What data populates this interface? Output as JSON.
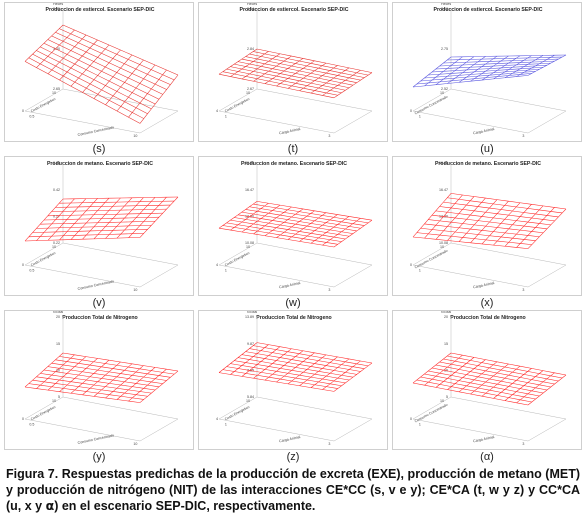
{
  "chart_data": [
    {
      "id": "s",
      "type": "surface",
      "label": "(s)",
      "title": "Produccion de estiercol. Escenario SEP-DIC",
      "zlabel": "Heces",
      "zticks": [
        "3.25",
        "3.00",
        "2.65"
      ],
      "xlabel": "Costo Energetico",
      "ylabel": "Consumo Concentrado",
      "xticks": [
        "0",
        "10"
      ],
      "yticks": [
        "0.5",
        "10"
      ],
      "corners": {
        "back_left": 0.8,
        "back_right": 0.45,
        "front_left": 0.62,
        "front_right": 0.12
      },
      "color": "#e8322e"
    },
    {
      "id": "t",
      "type": "surface",
      "label": "(t)",
      "title": "Produccion de estiercol. Escenario SEP-DIC",
      "zlabel": "Heces",
      "zticks": [
        "3.04",
        "2.84",
        "2.67"
      ],
      "xlabel": "Costo Energetico",
      "ylabel": "Carga Animal",
      "xticks": [
        "4",
        "10"
      ],
      "yticks": [
        "1",
        "3"
      ],
      "corners": {
        "back_left": 0.5,
        "back_right": 0.48,
        "front_left": 0.46,
        "front_right": 0.44
      },
      "color": "#e8322e"
    },
    {
      "id": "u",
      "type": "surface",
      "label": "(u)",
      "title": "Produccion de estiercol. Escenario SEP-DIC",
      "zlabel": "Heces",
      "zticks": [
        "3.08",
        "2.75",
        "2.52"
      ],
      "xlabel": "Consumo Concentrado",
      "ylabel": "Carga Animal",
      "xticks": [
        "0",
        "10"
      ],
      "yticks": [
        "1",
        "3"
      ],
      "corners": {
        "back_left": 0.4,
        "back_right": 0.7,
        "front_left": 0.3,
        "front_right": 0.72
      },
      "color": "#5a58e0"
    },
    {
      "id": "v",
      "type": "surface",
      "label": "(v)",
      "title": "Produccion de metano. Escenario SEP-DIC",
      "zlabel": "",
      "zticks": [
        "0.66",
        "0.42",
        "0.27",
        "0.22"
      ],
      "xlabel": "Costo Energetico",
      "ylabel": "Consumo Concentrado",
      "xticks": [
        "0",
        "10"
      ],
      "yticks": [
        "0.5",
        "10"
      ],
      "corners": {
        "back_left": 0.55,
        "back_right": 0.85,
        "front_left": 0.3,
        "front_right": 0.62
      },
      "color": "#ff2a2a"
    },
    {
      "id": "w",
      "type": "surface",
      "label": "(w)",
      "title": "Produccion de metano. Escenario SEP-DIC",
      "zlabel": "",
      "zticks": [
        "20.08",
        "16.47",
        "12.30",
        "10.08"
      ],
      "xlabel": "Costo Energetico",
      "ylabel": "Carga Animal",
      "xticks": [
        "4",
        "10"
      ],
      "yticks": [
        "1",
        "3"
      ],
      "corners": {
        "back_left": 0.52,
        "back_right": 0.56,
        "front_left": 0.46,
        "front_right": 0.5
      },
      "color": "#ff2a2a"
    },
    {
      "id": "x",
      "type": "surface",
      "label": "(x)",
      "title": "Produccion de metano. Escenario SEP-DIC",
      "zlabel": "",
      "zticks": [
        "19.66",
        "16.47",
        "13.30",
        "10.08"
      ],
      "xlabel": "Consumo Concentrado",
      "ylabel": "Carga Animal",
      "xticks": [
        "0",
        "10"
      ],
      "yticks": [
        "1",
        "3"
      ],
      "corners": {
        "back_left": 0.62,
        "back_right": 0.7,
        "front_left": 0.35,
        "front_right": 0.48
      },
      "color": "#ff2a2a"
    },
    {
      "id": "y",
      "type": "surface",
      "label": "(y)",
      "title": "Produccion Total de Nitrogeno",
      "zlabel": "NTotal",
      "zticks": [
        "20",
        "15",
        "10",
        "5"
      ],
      "xlabel": "Costo Energetico",
      "ylabel": "Consumo Concentrado",
      "xticks": [
        "0",
        "10"
      ],
      "yticks": [
        "0.5",
        "10"
      ],
      "corners": {
        "back_left": 0.55,
        "back_right": 0.6,
        "front_left": 0.4,
        "front_right": 0.48
      },
      "color": "#ff2a2a"
    },
    {
      "id": "z",
      "type": "surface",
      "label": "(z)",
      "title": "Produccion Total de Nitrogeno",
      "zlabel": "NTotal",
      "zticks": [
        "13.89",
        "9.87",
        "7.85",
        "5.84"
      ],
      "xlabel": "Costo Energetico",
      "ylabel": "Carga Animal",
      "xticks": [
        "4",
        "10"
      ],
      "yticks": [
        "1",
        "3"
      ],
      "corners": {
        "back_left": 0.68,
        "back_right": 0.7,
        "front_left": 0.58,
        "front_right": 0.62
      },
      "color": "#ff2a2a"
    },
    {
      "id": "alpha",
      "type": "surface",
      "label": "(α)",
      "title": "Produccion Total de Nitrogeno",
      "zlabel": "NTotal",
      "zticks": [
        "20",
        "15",
        "10",
        "5"
      ],
      "xlabel": "Consumo Concentrado",
      "ylabel": "Carga Animal",
      "xticks": [
        "0",
        "10"
      ],
      "yticks": [
        "1",
        "3"
      ],
      "corners": {
        "back_left": 0.55,
        "back_right": 0.55,
        "front_left": 0.45,
        "front_right": 0.45
      },
      "color": "#ff2a2a"
    }
  ],
  "caption": {
    "prefix": "Figura 7. Respuestas predichas de la producción de excreta (EXE), producción de metano (MET) y producción de nitrógeno (NIT) de las interacciones CE*CC (s, v e y); CE*CA (t, w y z) y CC*CA (u, x y ",
    "alpha": "α",
    "suffix": ") en el escenario SEP-DIC, respectivamente."
  }
}
